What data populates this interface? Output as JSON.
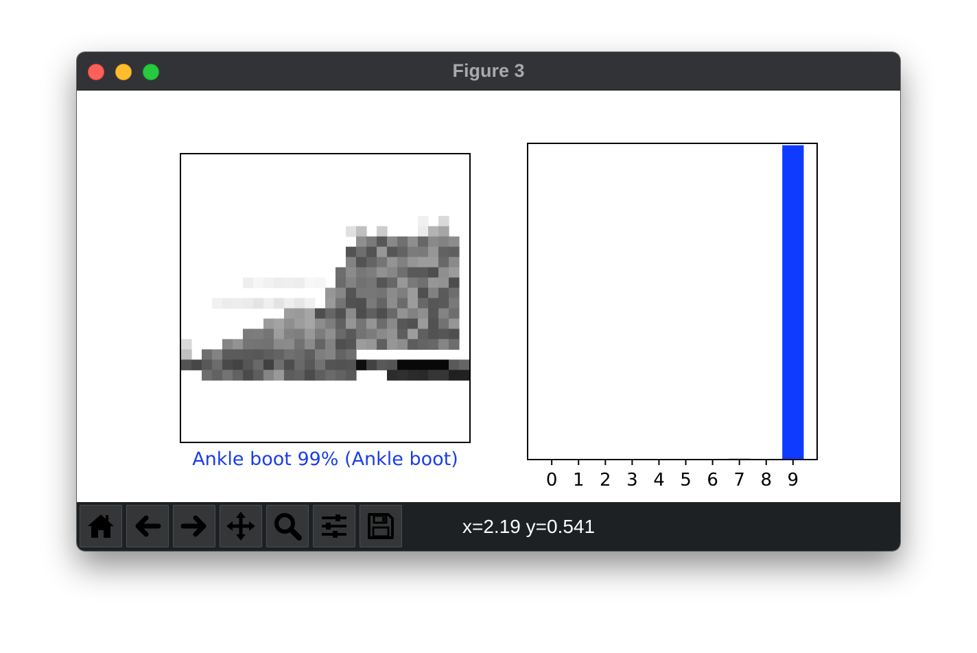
{
  "window": {
    "title": "Figure 3"
  },
  "figure": {
    "image_panel": {
      "xlabel": "Ankle boot 99% (Ankle boot)",
      "xlabel_color": "#1a3ee6",
      "colormap": "binary",
      "image_size": [
        28,
        28
      ]
    },
    "chart_data": {
      "type": "bar",
      "categories": [
        "0",
        "1",
        "2",
        "3",
        "4",
        "5",
        "6",
        "7",
        "8",
        "9"
      ],
      "values": [
        0.0,
        0.0,
        0.0,
        0.0,
        0.0,
        0.0,
        0.0,
        0.003,
        0.0,
        0.994
      ],
      "ylim": [
        0,
        1
      ],
      "colors": {
        "default": "#777777",
        "predicted": "#0e3bff"
      },
      "title": "",
      "xlabel": "",
      "ylabel": "",
      "grid": false
    }
  },
  "toolbar": {
    "buttons": [
      {
        "name": "home-button",
        "icon": "home-icon"
      },
      {
        "name": "back-button",
        "icon": "arrow-left-icon"
      },
      {
        "name": "forward-button",
        "icon": "arrow-right-icon"
      },
      {
        "name": "pan-button",
        "icon": "move-icon"
      },
      {
        "name": "zoom-button",
        "icon": "magnifier-icon"
      },
      {
        "name": "configure-subplots-button",
        "icon": "sliders-icon"
      },
      {
        "name": "save-button",
        "icon": "floppy-disk-icon"
      }
    ],
    "coordinates": "x=2.19 y=0.541"
  }
}
